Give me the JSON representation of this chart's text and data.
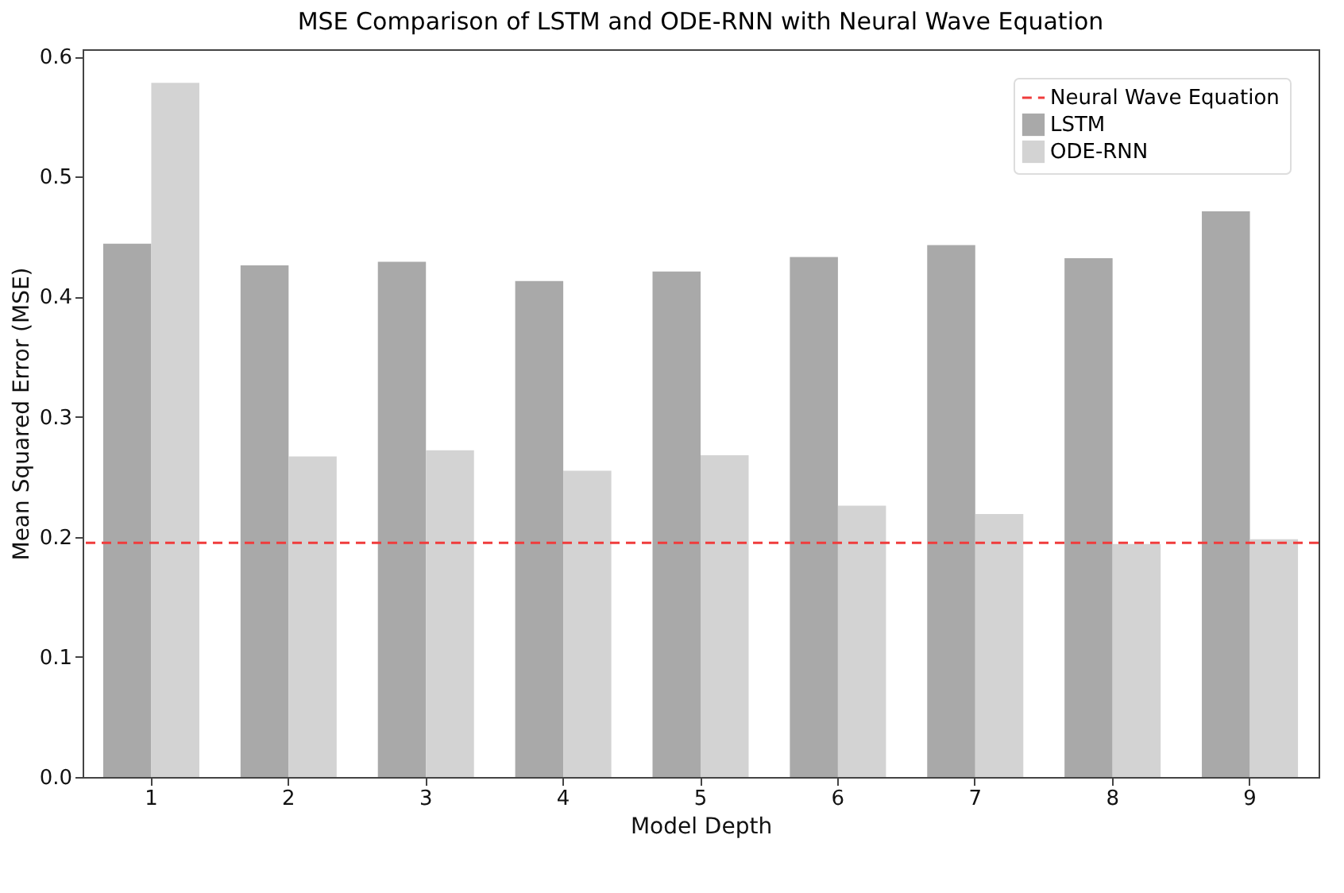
{
  "chart_data": {
    "type": "bar",
    "title": "MSE Comparison of LSTM and ODE-RNN with Neural Wave Equation",
    "xlabel": "Model Depth",
    "ylabel": "Mean Squared Error (MSE)",
    "categories": [
      "1",
      "2",
      "3",
      "4",
      "5",
      "6",
      "7",
      "8",
      "9"
    ],
    "series": [
      {
        "name": "LSTM",
        "color": "#a9a9a9",
        "values": [
          0.444,
          0.426,
          0.429,
          0.413,
          0.421,
          0.433,
          0.443,
          0.432,
          0.471
        ]
      },
      {
        "name": "ODE-RNN",
        "color": "#d3d3d3",
        "values": [
          0.578,
          0.267,
          0.272,
          0.255,
          0.268,
          0.226,
          0.219,
          0.194,
          0.198
        ]
      }
    ],
    "ref_lines": [
      {
        "axis": "y",
        "value": 0.195,
        "label": "Neural Wave Equation",
        "color": "#f03c3c",
        "line_style": "dashed"
      }
    ],
    "ylim": [
      0,
      0.606
    ],
    "yticks": [
      {
        "value": 0,
        "label": "0.0"
      },
      0.1,
      0.2,
      0.3,
      0.4,
      0.5,
      0.6
    ],
    "grid": false,
    "legend": "top right"
  }
}
